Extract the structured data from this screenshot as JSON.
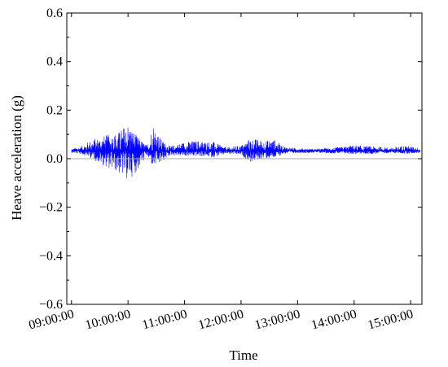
{
  "chart_data": {
    "type": "line",
    "title": "",
    "xlabel": "Time",
    "ylabel": "Heave acceleration (g)",
    "ylim": [
      -0.6,
      0.6
    ],
    "yticks": [
      -0.6,
      -0.4,
      -0.2,
      0.0,
      0.2,
      0.4,
      0.6
    ],
    "ytick_labels": [
      "−0.6",
      "−0.4",
      "−0.2",
      "0.0",
      "0.2",
      "0.4",
      "0.6"
    ],
    "xlim": [
      "08:55:00",
      "15:12:00"
    ],
    "xticks": [
      "09:00:00",
      "10:00:00",
      "11:00:00",
      "12:00:00",
      "13:00:00",
      "14:00:00",
      "15:00:00"
    ],
    "grid": false,
    "reference_line": {
      "y": 0.0,
      "color": "#aaaaaa"
    },
    "series": [
      {
        "color": "#0000ff",
        "mean": 0.033,
        "start": "09:00:00",
        "end": "15:10:00",
        "envelope": [
          {
            "t": "09:00:00",
            "lo": 0.025,
            "hi": 0.04
          },
          {
            "t": "09:10:00",
            "lo": 0.02,
            "hi": 0.05
          },
          {
            "t": "09:20:00",
            "lo": 0.005,
            "hi": 0.075
          },
          {
            "t": "09:30:00",
            "lo": -0.02,
            "hi": 0.09
          },
          {
            "t": "09:40:00",
            "lo": -0.04,
            "hi": 0.1
          },
          {
            "t": "09:50:00",
            "lo": -0.06,
            "hi": 0.11
          },
          {
            "t": "10:00:00",
            "lo": -0.09,
            "hi": 0.15
          },
          {
            "t": "10:10:00",
            "lo": -0.05,
            "hi": 0.09
          },
          {
            "t": "10:20:00",
            "lo": 0.01,
            "hi": 0.055
          },
          {
            "t": "10:27:00",
            "lo": -0.04,
            "hi": 0.15
          },
          {
            "t": "10:35:00",
            "lo": -0.02,
            "hi": 0.08
          },
          {
            "t": "10:45:00",
            "lo": 0.015,
            "hi": 0.05
          },
          {
            "t": "11:00:00",
            "lo": 0.01,
            "hi": 0.07
          },
          {
            "t": "11:15:00",
            "lo": 0.01,
            "hi": 0.075
          },
          {
            "t": "11:30:00",
            "lo": 0.005,
            "hi": 0.07
          },
          {
            "t": "11:45:00",
            "lo": 0.02,
            "hi": 0.045
          },
          {
            "t": "12:00:00",
            "lo": 0.015,
            "hi": 0.055
          },
          {
            "t": "12:10:00",
            "lo": -0.015,
            "hi": 0.085
          },
          {
            "t": "12:25:00",
            "lo": 0.0,
            "hi": 0.075
          },
          {
            "t": "12:35:00",
            "lo": 0.0,
            "hi": 0.08
          },
          {
            "t": "12:45:00",
            "lo": 0.02,
            "hi": 0.05
          },
          {
            "t": "13:00:00",
            "lo": 0.024,
            "hi": 0.042
          },
          {
            "t": "13:20:00",
            "lo": 0.025,
            "hi": 0.04
          },
          {
            "t": "13:40:00",
            "lo": 0.022,
            "hi": 0.045
          },
          {
            "t": "14:00:00",
            "lo": 0.02,
            "hi": 0.055
          },
          {
            "t": "14:20:00",
            "lo": 0.02,
            "hi": 0.05
          },
          {
            "t": "14:40:00",
            "lo": 0.024,
            "hi": 0.045
          },
          {
            "t": "14:55:00",
            "lo": 0.02,
            "hi": 0.055
          },
          {
            "t": "15:10:00",
            "lo": 0.024,
            "hi": 0.042
          }
        ]
      }
    ]
  }
}
